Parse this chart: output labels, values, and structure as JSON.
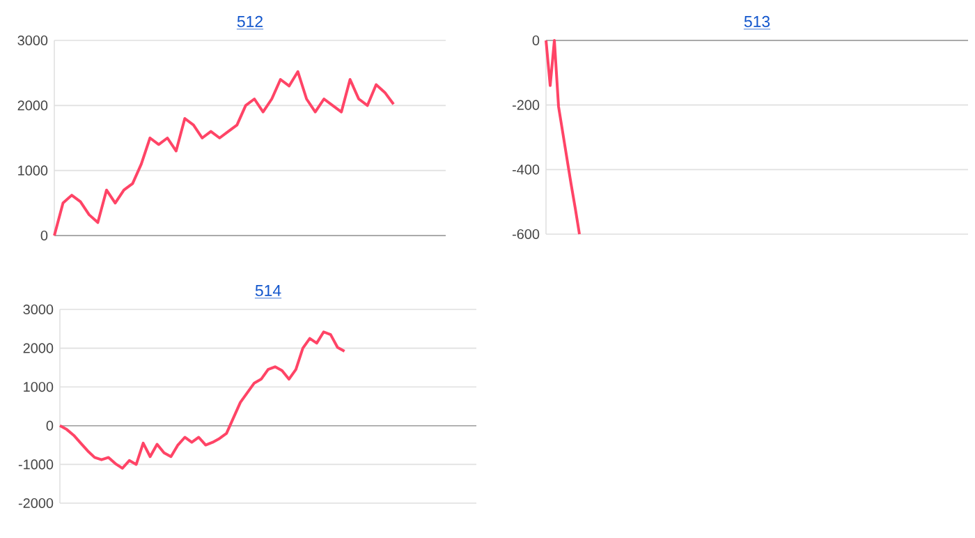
{
  "chart_data": [
    {
      "type": "line",
      "title": "512",
      "categories": [
        null,
        null,
        null,
        null,
        null,
        null,
        null,
        null,
        null,
        null,
        null,
        null,
        null,
        null,
        null,
        null,
        null,
        null,
        null,
        null,
        null,
        null,
        null,
        null,
        null,
        null,
        null,
        null,
        null,
        null,
        null,
        null,
        null,
        null,
        null,
        null,
        null,
        null,
        null,
        null,
        null,
        null,
        null,
        null,
        null,
        null
      ],
      "series": [
        {
          "color": "#ff4466",
          "values": [
            0,
            500,
            620,
            520,
            320,
            200,
            700,
            500,
            700,
            800,
            1100,
            1500,
            1400,
            1500,
            1300,
            1800,
            1700,
            1500,
            1600,
            1500,
            1600,
            1700,
            2000,
            2100,
            1900,
            2100,
            2400,
            2300,
            2520,
            2100,
            1900,
            2100,
            2000,
            1900,
            2400,
            2100,
            2000,
            2320,
            2200,
            2020,
            null,
            null,
            null,
            null,
            null,
            null
          ]
        }
      ],
      "ylim": [
        0,
        3000
      ],
      "yticks": [
        0,
        1000,
        2000,
        3000
      ],
      "grid": "y",
      "tick_labels": "y"
    },
    {
      "type": "line",
      "title": "513",
      "categories": [
        null,
        null,
        null,
        null,
        null,
        null,
        null,
        null,
        null,
        null,
        null,
        null,
        null,
        null,
        null,
        null,
        null,
        null,
        null,
        null,
        null,
        null,
        null,
        null,
        null,
        null,
        null,
        null,
        null,
        null,
        null,
        null,
        null,
        null,
        null,
        null,
        null,
        null,
        null,
        null,
        null,
        null,
        null,
        null,
        null,
        null,
        null,
        null,
        null,
        null,
        null,
        null,
        null,
        null,
        null,
        null,
        null,
        null,
        null,
        null,
        null,
        null,
        null,
        null,
        null,
        null,
        null,
        null,
        null,
        null,
        null,
        null,
        null,
        null,
        null,
        null,
        null,
        null,
        null,
        null,
        null,
        null,
        null,
        null,
        null,
        null,
        null,
        null,
        null,
        null,
        null,
        null,
        null,
        null,
        null,
        null,
        null,
        null,
        null,
        null,
        null,
        null
      ],
      "series": [
        {
          "color": "#ff4466",
          "values": [
            0,
            -140,
            0,
            -205,
            -285,
            -365,
            -445,
            -520,
            -600,
            null,
            null,
            null,
            null,
            null,
            null,
            null,
            null,
            null,
            null,
            null,
            null,
            null,
            null,
            null,
            null,
            null,
            null,
            null,
            null,
            null,
            null,
            null,
            null,
            null,
            null,
            null,
            null,
            null,
            null,
            null,
            null,
            null,
            null,
            null,
            null,
            null,
            null,
            null,
            null,
            null,
            null,
            null,
            null,
            null,
            null,
            null,
            null,
            null,
            null,
            null,
            null,
            null,
            null,
            null,
            null,
            null,
            null,
            null,
            null,
            null,
            null,
            null,
            null,
            null,
            null,
            null,
            null,
            null,
            null,
            null,
            null,
            null,
            null,
            null,
            null,
            null,
            null,
            null,
            null,
            null,
            null,
            null,
            null,
            null,
            null,
            null,
            null,
            null,
            null,
            null,
            null,
            null
          ]
        }
      ],
      "ylim": [
        -600,
        0
      ],
      "yticks": [
        -600,
        -400,
        -200,
        0
      ],
      "grid": "y",
      "tick_labels": "y"
    },
    {
      "type": "line",
      "title": "514",
      "categories": [
        null,
        null,
        null,
        null,
        null,
        null,
        null,
        null,
        null,
        null,
        null,
        null,
        null,
        null,
        null,
        null,
        null,
        null,
        null,
        null,
        null,
        null,
        null,
        null,
        null,
        null,
        null,
        null,
        null,
        null,
        null,
        null,
        null,
        null,
        null,
        null,
        null,
        null,
        null,
        null,
        null,
        null,
        null,
        null,
        null,
        null,
        null,
        null,
        null,
        null,
        null,
        null,
        null,
        null,
        null,
        null,
        null,
        null,
        null,
        null,
        null
      ],
      "series": [
        {
          "color": "#ff4466",
          "values": [
            0,
            -100,
            -250,
            -450,
            -650,
            -820,
            -880,
            -820,
            -980,
            -1100,
            -900,
            -1000,
            -450,
            -800,
            -480,
            -700,
            -800,
            -500,
            -300,
            -430,
            -300,
            -500,
            -430,
            -330,
            -200,
            200,
            600,
            850,
            1100,
            1200,
            1450,
            1520,
            1420,
            1200,
            1450,
            2000,
            2250,
            2130,
            2420,
            2350,
            2020,
            1920,
            null,
            null,
            null,
            null,
            null,
            null,
            null,
            null,
            null,
            null,
            null,
            null,
            null,
            null,
            null,
            null,
            null,
            null,
            null
          ]
        }
      ],
      "ylim": [
        -2000,
        3000
      ],
      "yticks": [
        -2000,
        -1000,
        0,
        1000,
        2000,
        3000
      ],
      "grid": "y",
      "tick_labels": "y"
    }
  ]
}
